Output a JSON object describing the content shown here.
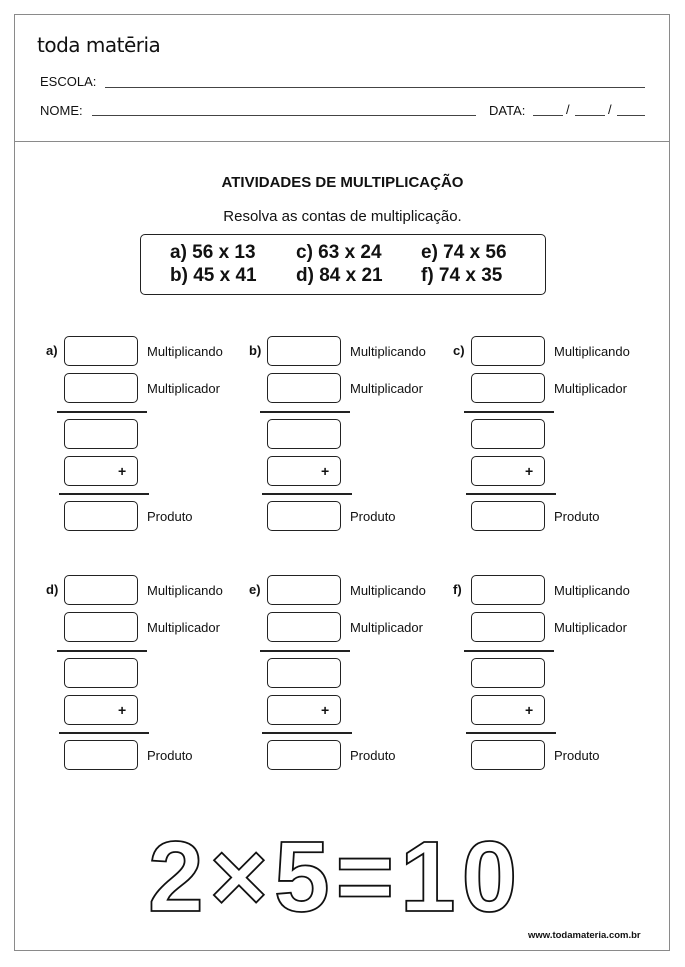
{
  "header": {
    "logo": "toda matēria",
    "escola_label": "ESCOLA:",
    "nome_label": "NOME:",
    "data_label": "DATA:",
    "date_separator": "/"
  },
  "title": "ATIVIDADES DE MULTIPLICAÇÃO",
  "subtitle": "Resolva as contas de multiplicação.",
  "problems": [
    "a) 56 x 13",
    "b) 45 x 41",
    "c) 63 x 24",
    "d) 84 x 21",
    "e) 74 x 56",
    "f) 74 x 35"
  ],
  "exercises": [
    {
      "tag": "a)"
    },
    {
      "tag": "b)"
    },
    {
      "tag": "c)"
    },
    {
      "tag": "d)"
    },
    {
      "tag": "e)"
    },
    {
      "tag": "f)"
    }
  ],
  "labels": {
    "multiplicando": "Multiplicando",
    "multiplicador": "Multiplicador",
    "produto": "Produto",
    "plus": "+"
  },
  "illustration": {
    "text": "2×5=10"
  },
  "footer": {
    "url": "www.todamateria.com.br"
  }
}
